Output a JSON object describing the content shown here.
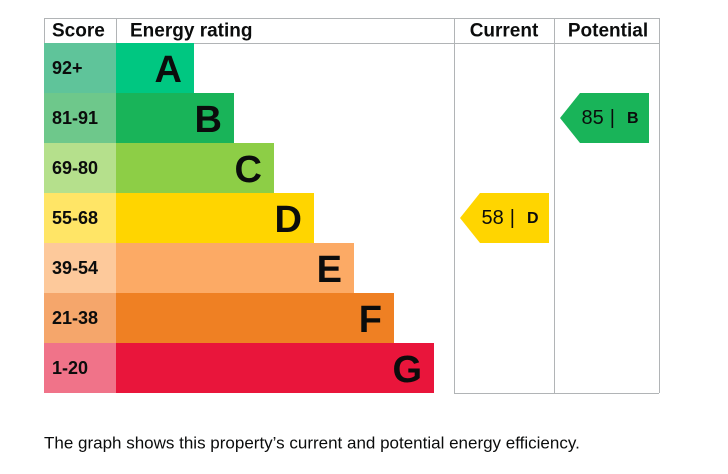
{
  "header": {
    "score": "Score",
    "rating": "Energy rating",
    "current": "Current",
    "potential": "Potential"
  },
  "bands": [
    {
      "score": "92+",
      "rating": "A",
      "color": "#00c781",
      "score_color": "#5fc49a"
    },
    {
      "score": "81-91",
      "rating": "B",
      "color": "#19b459",
      "score_color": "#6ec88b"
    },
    {
      "score": "69-80",
      "rating": "C",
      "color": "#8dce46",
      "score_color": "#b5e08c"
    },
    {
      "score": "55-68",
      "rating": "D",
      "color": "#ffd500",
      "score_color": "#ffe566"
    },
    {
      "score": "39-54",
      "rating": "E",
      "color": "#fcaa65",
      "score_color": "#fdc99b"
    },
    {
      "score": "21-38",
      "rating": "F",
      "color": "#ef8023",
      "score_color": "#f5a66b"
    },
    {
      "score": "1-20",
      "rating": "G",
      "color": "#e9153b",
      "score_color": "#f07389"
    }
  ],
  "current": {
    "value": 58,
    "rating": "D"
  },
  "potential": {
    "value": 85,
    "rating": "B"
  },
  "caption": "The graph shows this property’s current and potential energy efficiency."
}
